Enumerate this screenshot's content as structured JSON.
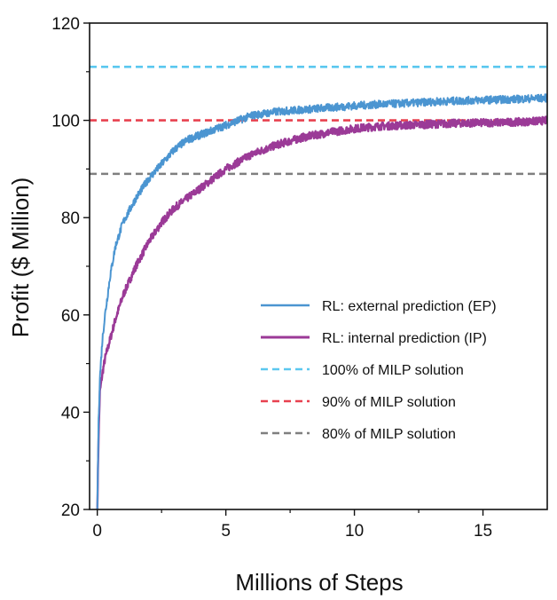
{
  "chart_data": {
    "type": "line",
    "title": "",
    "xlabel": "Millions of Steps",
    "ylabel": "Profit ($ Million)",
    "xlim": [
      -0.3,
      17.5
    ],
    "ylim": [
      20,
      120
    ],
    "xticks": [
      0,
      5,
      10,
      15
    ],
    "yticks": [
      20,
      40,
      60,
      80,
      100,
      120
    ],
    "xtick_labels": [
      "0",
      "5",
      "10",
      "15"
    ],
    "ytick_labels": [
      "20",
      "40",
      "60",
      "80",
      "100",
      "120"
    ],
    "grid": false,
    "legend_position": "center-right",
    "series": [
      {
        "name": "RL: external prediction (EP)",
        "color": "#4b95d1",
        "style": "solid",
        "x": [
          0,
          0.05,
          0.1,
          0.2,
          0.3,
          0.5,
          0.7,
          1.0,
          1.5,
          2.0,
          2.5,
          3.0,
          3.5,
          4.0,
          5.0,
          6.0,
          7.0,
          8.0,
          9.0,
          10.0,
          11.0,
          12.0,
          13.0,
          14.0,
          15.0,
          16.0,
          17.0,
          17.5
        ],
        "y": [
          20,
          38,
          47,
          55,
          60,
          68,
          74,
          79,
          84,
          88,
          91,
          94,
          96,
          97,
          99,
          101,
          101.8,
          102.2,
          102.6,
          103,
          103.3,
          103.5,
          103.8,
          104,
          104.2,
          104.3,
          104.5,
          104.6
        ]
      },
      {
        "name": "RL: internal prediction (IP)",
        "color": "#9b3a97",
        "style": "solid",
        "x": [
          0,
          0.05,
          0.1,
          0.2,
          0.3,
          0.5,
          0.7,
          1.0,
          1.5,
          2.0,
          2.5,
          3.0,
          3.5,
          4.0,
          5.0,
          6.0,
          7.0,
          8.0,
          9.0,
          10.0,
          11.0,
          12.0,
          13.0,
          14.0,
          15.0,
          16.0,
          17.0,
          17.5
        ],
        "y": [
          20,
          35,
          44,
          48,
          51,
          55,
          59,
          64,
          70,
          75,
          79,
          82,
          84,
          86,
          90,
          93,
          95,
          96.5,
          97.5,
          98.3,
          98.8,
          99,
          99.2,
          99.4,
          99.5,
          99.6,
          99.8,
          100
        ]
      },
      {
        "name": "100% of MILP solution",
        "color": "#5bc8ef",
        "style": "dashed",
        "x": [
          -0.3,
          17.5
        ],
        "y": [
          111,
          111
        ]
      },
      {
        "name": "90% of MILP solution",
        "color": "#e8414f",
        "style": "dashed",
        "x": [
          -0.3,
          17.5
        ],
        "y": [
          100,
          100
        ]
      },
      {
        "name": "80% of MILP solution",
        "color": "#7f7f7f",
        "style": "dashed",
        "x": [
          -0.3,
          17.5
        ],
        "y": [
          89,
          89
        ]
      }
    ]
  }
}
